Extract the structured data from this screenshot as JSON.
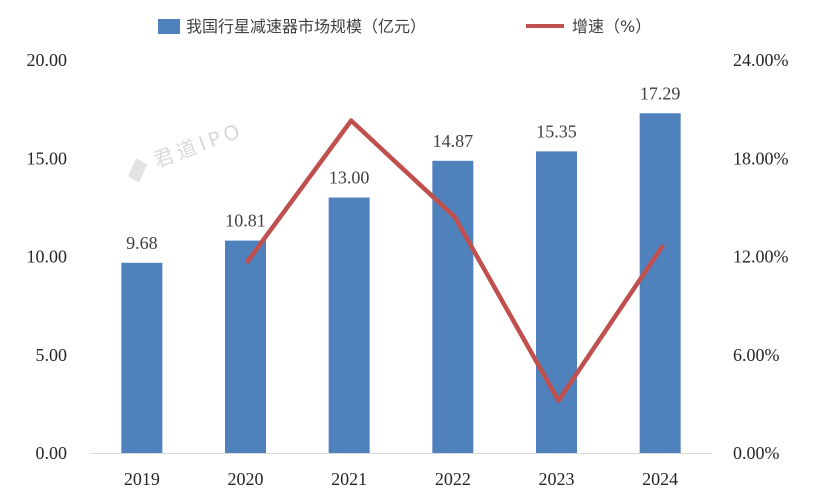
{
  "chart_data": {
    "type": "bar+line",
    "categories": [
      "2019",
      "2020",
      "2021",
      "2022",
      "2023",
      "2024"
    ],
    "series": [
      {
        "name": "我国行星减速器市场规模（亿元）",
        "type": "bar",
        "axis": "left",
        "color": "#4f81bd",
        "values": [
          9.68,
          10.81,
          13.0,
          14.87,
          15.35,
          17.29
        ],
        "labels": [
          "9.68",
          "10.81",
          "13.00",
          "14.87",
          "15.35",
          "17.29"
        ]
      },
      {
        "name": "增速（%）",
        "type": "line",
        "axis": "right",
        "color": "#c0504d",
        "values": [
          null,
          11.7,
          20.3,
          14.4,
          3.2,
          12.6
        ]
      }
    ],
    "left_axis": {
      "ylim": [
        0,
        20
      ],
      "ticks": [
        "0.00",
        "5.00",
        "10.00",
        "15.00",
        "20.00"
      ]
    },
    "right_axis": {
      "ylim": [
        0,
        24
      ],
      "ticks": [
        "0.00%",
        "6.00%",
        "12.00%",
        "18.00%",
        "24.00%"
      ]
    },
    "legend_position": "top",
    "grid": false
  },
  "watermark": "君道IPO"
}
